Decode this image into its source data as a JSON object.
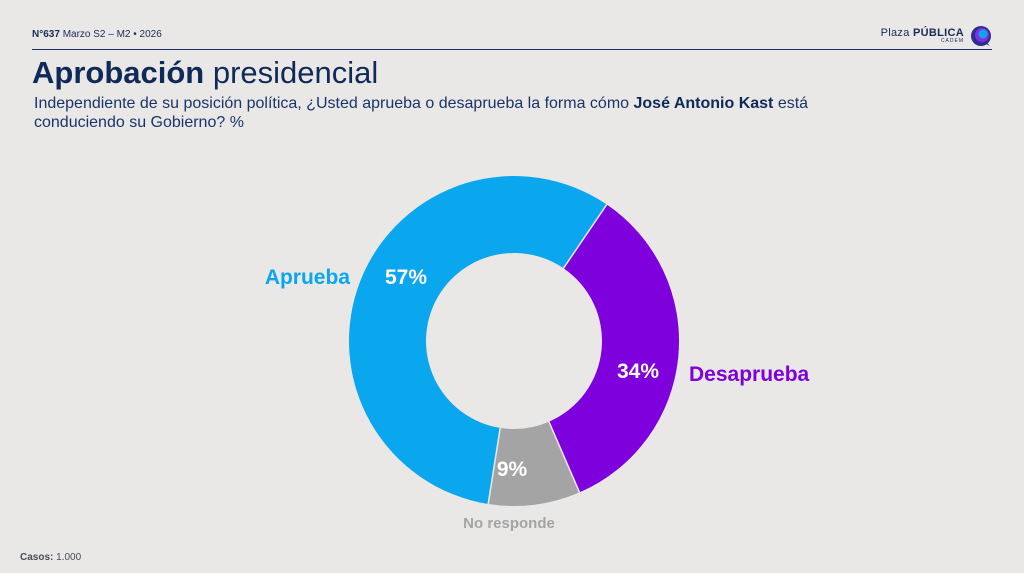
{
  "header": {
    "edition_number": "N°637",
    "edition_period": "Marzo S2 – M2 • 2026",
    "brand_prefix": "Plaza",
    "brand_strong": "PÚBLICA",
    "brand_sub": "CADEM"
  },
  "title": {
    "bold": "Aprobación",
    "regular": "presidencial"
  },
  "question": {
    "part1": "Independiente de su posición política, ¿Usted aprueba o desaprueba la forma cómo ",
    "name": "José Antonio Kast",
    "part2": " está conduciendo su Gobierno? %"
  },
  "footer": {
    "label": "Casos:",
    "value": "1.000"
  },
  "colors": {
    "aprueba": "#0aa6ee",
    "desaprueba": "#7e00dc",
    "no_responde": "#a4a4a4",
    "title": "#102a58"
  },
  "chart_data": {
    "type": "pie",
    "donut": true,
    "categories": [
      "Aprueba",
      "Desaprueba",
      "No responde"
    ],
    "values": [
      57,
      34,
      9
    ],
    "value_labels": [
      "57%",
      "34%",
      "9%"
    ],
    "colors": [
      "#0aa6ee",
      "#7e00dc",
      "#a4a4a4"
    ]
  }
}
